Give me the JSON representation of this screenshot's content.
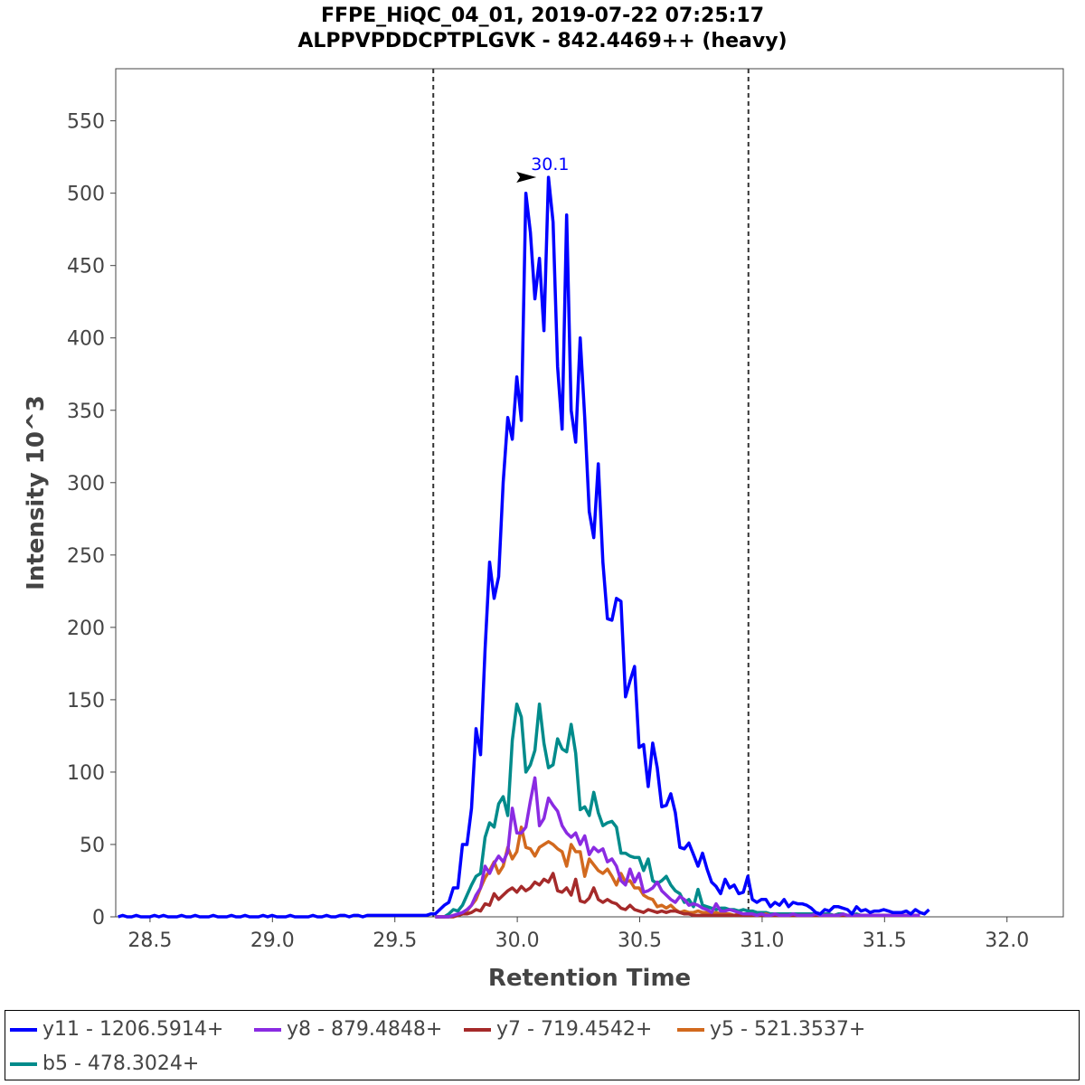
{
  "chart_data": {
    "type": "line",
    "title": "FFPE_HiQC_04_01, 2019-07-22 07:25:17",
    "subtitle": "ALPPVPDDCPTPLGVK - 842.4469++ (heavy)",
    "xlabel": "Retention Time",
    "ylabel": "Intensity 10^3",
    "xlim": [
      28.36,
      32.23
    ],
    "ylim": [
      0,
      586
    ],
    "xticks": [
      "28.5",
      "29.0",
      "29.5",
      "30.0",
      "30.5",
      "31.0",
      "31.5",
      "32.0"
    ],
    "yticks": [
      "0",
      "50",
      "100",
      "150",
      "200",
      "250",
      "300",
      "350",
      "400",
      "450",
      "500",
      "550"
    ],
    "grid": false,
    "boundaries": [
      29.657,
      30.944
    ],
    "annotation": {
      "text": "30.1",
      "x": 30.1,
      "y": 511,
      "color": "#0000ff"
    },
    "x_step": 0.0185,
    "series": [
      {
        "name": "y11 - 1206.5914+",
        "color": "#0000ff",
        "x_start": 28.37,
        "values": [
          0,
          1,
          0,
          0,
          1,
          0,
          0,
          0,
          1,
          0,
          1,
          0,
          0,
          0,
          1,
          0,
          0,
          1,
          0,
          0,
          0,
          1,
          0,
          0,
          0,
          1,
          0,
          0,
          1,
          0,
          0,
          0,
          1,
          0,
          1,
          0,
          0,
          0,
          1,
          0,
          0,
          0,
          0,
          1,
          0,
          0,
          1,
          0,
          0,
          1,
          1,
          0,
          1,
          1,
          0,
          1,
          1,
          1,
          1,
          1,
          1,
          1,
          1,
          1,
          1,
          1,
          1,
          1,
          1,
          2,
          2,
          5,
          8,
          10,
          20,
          20,
          50,
          50,
          75,
          130,
          112,
          185,
          245,
          220,
          235,
          300,
          345,
          330,
          373,
          343,
          500,
          473,
          427,
          455,
          405,
          511,
          480,
          380,
          337,
          485,
          350,
          328,
          400,
          345,
          280,
          262,
          313,
          245,
          206,
          205,
          220,
          218,
          152,
          163,
          173,
          117,
          119,
          90,
          120,
          103,
          76,
          77,
          85,
          72,
          48,
          47,
          51,
          43,
          35,
          44,
          33,
          24,
          21,
          16,
          26,
          20,
          22,
          16,
          17,
          28,
          12,
          10,
          12,
          12,
          7,
          10,
          8,
          12,
          7,
          10,
          9,
          9,
          8,
          6,
          3,
          2,
          5,
          4,
          7,
          7,
          6,
          5,
          2,
          7,
          4,
          5,
          3,
          4,
          4,
          5,
          4,
          3,
          3,
          3,
          4,
          2,
          5,
          3,
          2,
          5
        ]
      },
      {
        "name": "y8 - 879.4848+",
        "color": "#8a2be2",
        "x_start": 29.665,
        "values": [
          0,
          0,
          0,
          0,
          1,
          2,
          3,
          5,
          8,
          15,
          20,
          35,
          30,
          37,
          42,
          38,
          45,
          75,
          58,
          58,
          62,
          80,
          96,
          63,
          68,
          82,
          77,
          73,
          63,
          58,
          55,
          58,
          50,
          56,
          43,
          48,
          45,
          47,
          38,
          40,
          35,
          25,
          22,
          33,
          24,
          30,
          17,
          18,
          20,
          24,
          18,
          15,
          12,
          10,
          14,
          12,
          8,
          9,
          8,
          6,
          5,
          3,
          9,
          4,
          4,
          5,
          4,
          3,
          2,
          2,
          2,
          1,
          2,
          1,
          1,
          2,
          1,
          1,
          1,
          2,
          1,
          1,
          1,
          1,
          2,
          1,
          1,
          1,
          1,
          1,
          2,
          1,
          1,
          1,
          1,
          1,
          1,
          1,
          1,
          1,
          1,
          1,
          1,
          1,
          1,
          1,
          1,
          1
        ]
      },
      {
        "name": "y7 - 719.4542+",
        "color": "#a52a2a",
        "x_start": 29.665,
        "values": [
          0,
          0,
          0,
          0,
          0,
          1,
          2,
          2,
          3,
          5,
          4,
          9,
          8,
          16,
          12,
          15,
          18,
          20,
          17,
          21,
          18,
          20,
          24,
          22,
          26,
          24,
          30,
          18,
          17,
          20,
          15,
          26,
          11,
          10,
          13,
          20,
          12,
          10,
          12,
          10,
          9,
          6,
          5,
          8,
          5,
          4,
          3,
          5,
          4,
          3,
          4,
          3,
          4,
          4,
          3,
          2,
          2,
          1,
          1,
          1,
          1,
          1,
          1,
          1,
          1,
          1,
          1,
          1,
          1,
          1,
          1,
          1,
          1,
          1,
          1,
          1,
          1,
          1,
          1,
          1,
          1,
          1,
          1,
          1,
          1,
          1,
          1,
          1,
          1,
          1,
          1,
          1,
          1,
          1,
          1,
          1,
          1,
          1,
          1,
          1,
          1,
          1,
          1,
          1,
          1,
          1,
          1,
          1
        ]
      },
      {
        "name": "y5 - 521.3537+",
        "color": "#d2691e",
        "x_start": 29.665,
        "values": [
          0,
          0,
          0,
          0,
          1,
          1,
          2,
          4,
          8,
          12,
          20,
          27,
          32,
          38,
          30,
          35,
          48,
          40,
          45,
          62,
          48,
          47,
          42,
          48,
          50,
          52,
          50,
          47,
          45,
          35,
          50,
          45,
          45,
          28,
          40,
          36,
          32,
          30,
          33,
          28,
          22,
          30,
          24,
          25,
          20,
          20,
          15,
          13,
          12,
          7,
          8,
          6,
          8,
          5,
          3,
          4,
          3,
          3,
          4,
          3,
          3,
          2,
          3,
          2,
          2,
          2,
          1,
          2,
          1,
          2,
          1,
          1,
          1,
          2,
          1,
          1,
          1,
          1,
          1,
          1,
          1,
          1,
          1,
          1,
          1,
          1,
          1,
          1,
          1,
          1,
          1,
          1,
          1,
          1,
          1,
          1,
          1,
          1,
          1,
          1,
          1,
          1,
          1,
          1,
          1,
          1,
          1,
          1
        ]
      },
      {
        "name": "b5 - 478.3024+",
        "color": "#008b8b",
        "x_start": 29.665,
        "values": [
          0,
          0,
          0,
          2,
          5,
          4,
          8,
          15,
          22,
          28,
          30,
          55,
          65,
          62,
          78,
          83,
          70,
          122,
          147,
          138,
          100,
          105,
          115,
          147,
          120,
          103,
          105,
          123,
          116,
          114,
          133,
          113,
          74,
          76,
          70,
          86,
          72,
          63,
          65,
          66,
          62,
          44,
          44,
          42,
          41,
          41,
          32,
          40,
          25,
          23,
          25,
          28,
          22,
          18,
          16,
          10,
          12,
          7,
          19,
          8,
          7,
          6,
          5,
          6,
          6,
          5,
          5,
          4,
          5,
          4,
          4,
          3,
          3,
          3,
          2,
          2,
          2,
          2,
          2,
          2,
          2,
          2,
          2,
          2,
          2,
          1,
          2,
          2,
          1,
          2,
          2,
          1,
          1,
          2,
          1,
          1,
          1,
          1,
          1,
          1,
          1,
          1,
          1,
          1,
          1,
          1,
          1,
          1
        ]
      }
    ]
  }
}
